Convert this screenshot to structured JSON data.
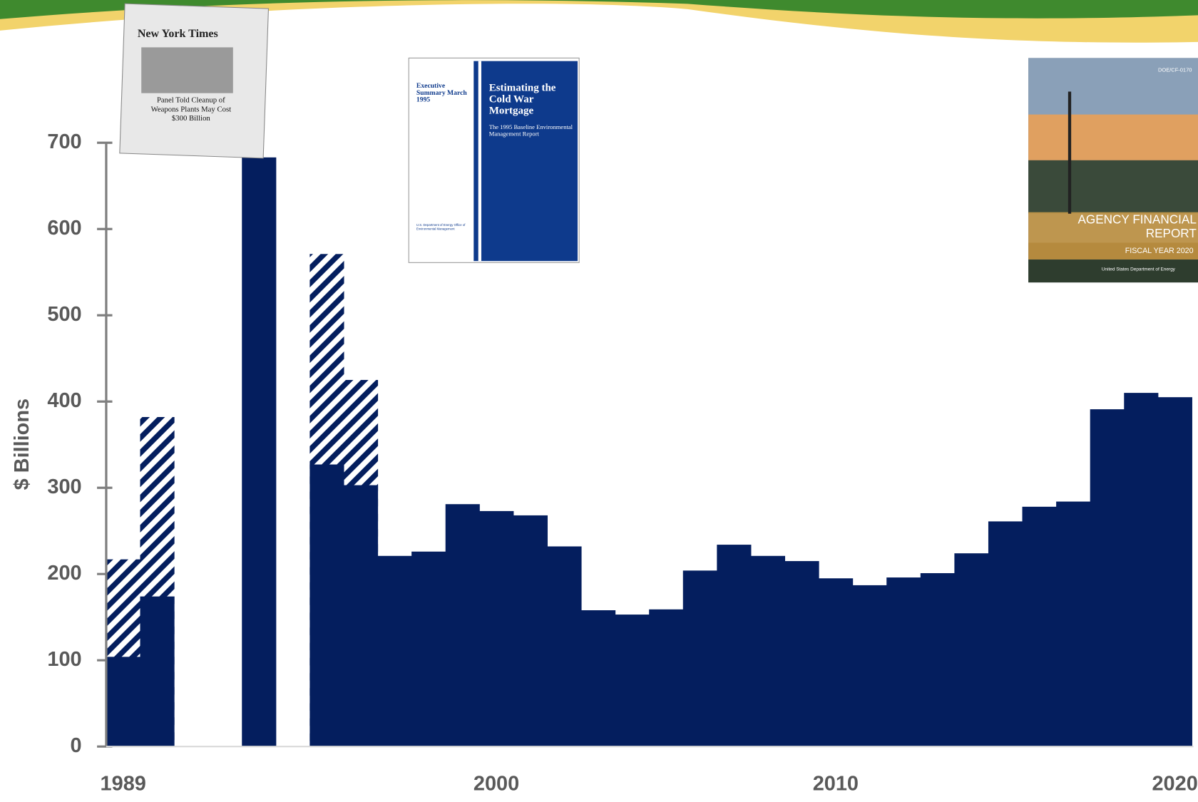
{
  "chart_data": {
    "type": "bar",
    "y_label": "$ Billions",
    "x": [
      1989,
      1990,
      1991,
      1992,
      1993,
      1994,
      1995,
      1996,
      1997,
      1998,
      1999,
      2000,
      2001,
      2002,
      2003,
      2004,
      2005,
      2006,
      2007,
      2008,
      2009,
      2010,
      2011,
      2012,
      2013,
      2014,
      2015,
      2016,
      2017,
      2018,
      2019,
      2020
    ],
    "xlim": [
      1988.5,
      2020.5
    ],
    "xticks": [
      1989,
      2000,
      2010,
      2020
    ],
    "series": [
      {
        "color": "#041e5e",
        "pattern": "hatched",
        "values": [
          217,
          382,
          null,
          null,
          null,
          null,
          571,
          425,
          null,
          null,
          null,
          null,
          null,
          null,
          null,
          null,
          null,
          null,
          null,
          null,
          null,
          null,
          null,
          null,
          null,
          null,
          null,
          null,
          null,
          null,
          null,
          null
        ]
      },
      {
        "color": "#041e5e",
        "pattern": "solid",
        "values": [
          104,
          174,
          null,
          null,
          683,
          null,
          327,
          303,
          221,
          226,
          281,
          273,
          268,
          232,
          158,
          153,
          159,
          204,
          234,
          221,
          215,
          195,
          187,
          196,
          201,
          224,
          261,
          278,
          284,
          391,
          410,
          405
        ]
      }
    ],
    "ylim": [
      0,
      700
    ],
    "yticks": [
      0,
      100,
      200,
      300,
      400,
      500,
      600,
      700
    ]
  },
  "images": {
    "newspaper": {
      "masthead": "New York Times",
      "headline": "Panel Told Cleanup of Weapons Plants May Cost $300 Billion"
    },
    "report_1995": {
      "side": "Executive Summary March 1995",
      "title": "Estimating the Cold War Mortgage",
      "subtitle": "The 1995 Baseline Environmental Management Report",
      "agency": "U.S. Department of Energy Office of Environmental Management"
    },
    "report_2020": {
      "code": "DOE/CF-0170",
      "title": "AGENCY FINANCIAL REPORT",
      "year": "FISCAL YEAR 2020",
      "agency": "United States Department of Energy"
    }
  }
}
